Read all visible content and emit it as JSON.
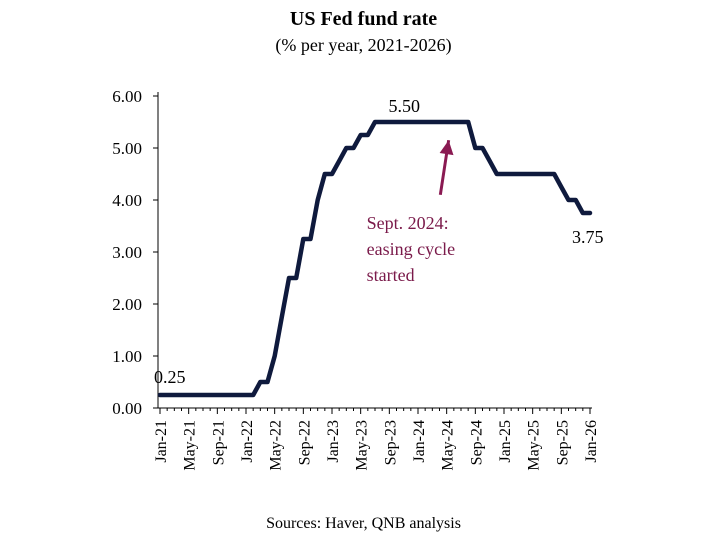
{
  "chart_data": {
    "type": "line",
    "title": "US Fed fund rate",
    "subtitle": "(% per year, 2021-2026)",
    "source": "Sources: Haver, QNB analysis",
    "xlabel": "",
    "ylabel": "",
    "ylim": [
      0,
      6
    ],
    "yticks": [
      "0.00",
      "1.00",
      "2.00",
      "3.00",
      "4.00",
      "5.00",
      "6.00"
    ],
    "xticks": [
      "Jan-21",
      "May-21",
      "Sep-21",
      "Jan-22",
      "May-22",
      "Sep-22",
      "Jan-23",
      "May-23",
      "Sep-23",
      "Jan-24",
      "May-24",
      "Sep-24",
      "Jan-25",
      "May-25",
      "Sep-25",
      "Jan-26"
    ],
    "grid": false,
    "line_color": "#0f1a3d",
    "series": [
      {
        "points": [
          [
            "2021-01",
            0.25
          ],
          [
            "2021-02",
            0.25
          ],
          [
            "2021-03",
            0.25
          ],
          [
            "2021-04",
            0.25
          ],
          [
            "2021-05",
            0.25
          ],
          [
            "2021-06",
            0.25
          ],
          [
            "2021-07",
            0.25
          ],
          [
            "2021-08",
            0.25
          ],
          [
            "2021-09",
            0.25
          ],
          [
            "2021-10",
            0.25
          ],
          [
            "2021-11",
            0.25
          ],
          [
            "2021-12",
            0.25
          ],
          [
            "2022-01",
            0.25
          ],
          [
            "2022-02",
            0.25
          ],
          [
            "2022-03",
            0.5
          ],
          [
            "2022-04",
            0.5
          ],
          [
            "2022-05",
            1.0
          ],
          [
            "2022-06",
            1.75
          ],
          [
            "2022-07",
            2.5
          ],
          [
            "2022-08",
            2.5
          ],
          [
            "2022-09",
            3.25
          ],
          [
            "2022-10",
            3.25
          ],
          [
            "2022-11",
            4.0
          ],
          [
            "2022-12",
            4.5
          ],
          [
            "2023-01",
            4.5
          ],
          [
            "2023-02",
            4.75
          ],
          [
            "2023-03",
            5.0
          ],
          [
            "2023-04",
            5.0
          ],
          [
            "2023-05",
            5.25
          ],
          [
            "2023-06",
            5.25
          ],
          [
            "2023-07",
            5.5
          ],
          [
            "2023-08",
            5.5
          ],
          [
            "2023-09",
            5.5
          ],
          [
            "2023-10",
            5.5
          ],
          [
            "2023-11",
            5.5
          ],
          [
            "2023-12",
            5.5
          ],
          [
            "2024-01",
            5.5
          ],
          [
            "2024-02",
            5.5
          ],
          [
            "2024-03",
            5.5
          ],
          [
            "2024-04",
            5.5
          ],
          [
            "2024-05",
            5.5
          ],
          [
            "2024-06",
            5.5
          ],
          [
            "2024-07",
            5.5
          ],
          [
            "2024-08",
            5.5
          ],
          [
            "2024-09",
            5.0
          ],
          [
            "2024-10",
            5.0
          ],
          [
            "2024-11",
            4.75
          ],
          [
            "2024-12",
            4.5
          ],
          [
            "2025-01",
            4.5
          ],
          [
            "2025-02",
            4.5
          ],
          [
            "2025-03",
            4.5
          ],
          [
            "2025-04",
            4.5
          ],
          [
            "2025-05",
            4.5
          ],
          [
            "2025-06",
            4.5
          ],
          [
            "2025-07",
            4.5
          ],
          [
            "2025-08",
            4.5
          ],
          [
            "2025-09",
            4.25
          ],
          [
            "2025-10",
            4.0
          ],
          [
            "2025-11",
            4.0
          ],
          [
            "2025-12",
            3.75
          ],
          [
            "2026-01",
            3.75
          ]
        ]
      }
    ],
    "annotations": [
      {
        "text": "0.25",
        "x": "2021-01",
        "y": 0.25
      },
      {
        "text": "5.50",
        "x": "2023-10",
        "y": 5.5
      },
      {
        "text": "3.75",
        "x": "2026-01",
        "y": 3.75
      },
      {
        "text": "Sept. 2024:",
        "x": "2024-05",
        "y": 3.6
      },
      {
        "text": "easing cycle",
        "x": "2024-05",
        "y": 3.1
      },
      {
        "text": "started",
        "x": "2024-05",
        "y": 2.6
      }
    ],
    "arrow": {
      "color": "#8a1a52",
      "from": {
        "x": "2024-03",
        "y": 4.1
      },
      "to": {
        "x": "2024-05",
        "y": 5.15
      }
    }
  }
}
